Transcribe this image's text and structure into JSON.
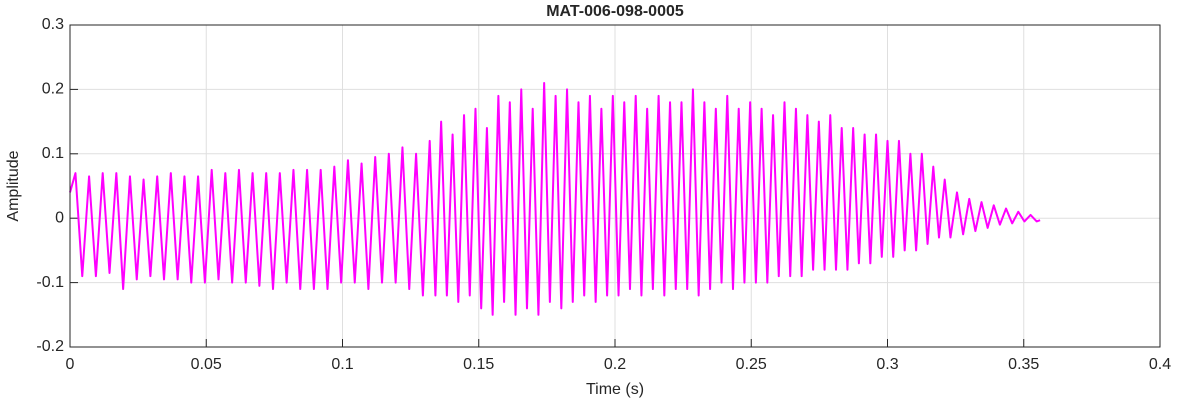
{
  "chart_data": {
    "type": "line",
    "title": "MAT-006-098-0005",
    "x_label": "Time (s)",
    "y_label": "Amplitude",
    "xlim": [
      0,
      0.4
    ],
    "ylim": [
      -0.2,
      0.3
    ],
    "xticks": [
      0,
      0.05,
      0.1,
      0.15,
      0.2,
      0.25,
      0.3,
      0.35,
      0.4
    ],
    "yticks": [
      -0.2,
      -0.1,
      0,
      0.1,
      0.2,
      0.3
    ],
    "grid": true,
    "x": [
      0,
      0.002,
      0.0045,
      0.007,
      0.0095,
      0.012,
      0.0145,
      0.017,
      0.0195,
      0.022,
      0.0245,
      0.027,
      0.0295,
      0.032,
      0.0345,
      0.037,
      0.0395,
      0.042,
      0.0445,
      0.047,
      0.0495,
      0.052,
      0.0545,
      0.057,
      0.0595,
      0.062,
      0.0645,
      0.067,
      0.0695,
      0.072,
      0.0745,
      0.077,
      0.0795,
      0.082,
      0.0845,
      0.087,
      0.0895,
      0.092,
      0.0945,
      0.097,
      0.0995,
      0.102,
      0.1045,
      0.107,
      0.1095,
      0.112,
      0.1145,
      0.117,
      0.1195,
      0.122,
      0.1245,
      0.127,
      0.1295,
      0.132,
      0.1341,
      0.1362,
      0.1383,
      0.1404,
      0.1425,
      0.1446,
      0.1467,
      0.1488,
      0.1509,
      0.153,
      0.1551,
      0.1572,
      0.1593,
      0.1614,
      0.1635,
      0.1656,
      0.1677,
      0.1698,
      0.1719,
      0.174,
      0.1761,
      0.1782,
      0.1803,
      0.1824,
      0.1845,
      0.1866,
      0.1887,
      0.1908,
      0.1929,
      0.195,
      0.1971,
      0.1992,
      0.2013,
      0.2034,
      0.2055,
      0.2076,
      0.2097,
      0.2118,
      0.2139,
      0.216,
      0.2181,
      0.2202,
      0.2223,
      0.2244,
      0.2265,
      0.2286,
      0.2307,
      0.2328,
      0.2349,
      0.237,
      0.2391,
      0.2412,
      0.2433,
      0.2454,
      0.2475,
      0.2496,
      0.2517,
      0.2538,
      0.2559,
      0.258,
      0.2601,
      0.2622,
      0.2643,
      0.2664,
      0.2685,
      0.2706,
      0.2727,
      0.2748,
      0.2769,
      0.279,
      0.2811,
      0.2832,
      0.2853,
      0.2874,
      0.2895,
      0.2916,
      0.2937,
      0.2958,
      0.2979,
      0.3,
      0.3021,
      0.3042,
      0.3063,
      0.3084,
      0.3105,
      0.3126,
      0.3147,
      0.3168,
      0.3189,
      0.321,
      0.3231,
      0.3255,
      0.32775,
      0.33,
      0.33225,
      0.3345,
      0.33675,
      0.339,
      0.34125,
      0.3435,
      0.34575,
      0.348,
      0.35025,
      0.3525,
      0.35475,
      0.356
    ],
    "series": [
      {
        "name": "Amplitude",
        "color": "#ff00ff",
        "values": [
          0.04,
          0.07,
          -0.09,
          0.065,
          -0.09,
          0.07,
          -0.085,
          0.07,
          -0.11,
          0.065,
          -0.095,
          0.06,
          -0.09,
          0.065,
          -0.095,
          0.07,
          -0.095,
          0.065,
          -0.1,
          0.065,
          -0.1,
          0.075,
          -0.095,
          0.07,
          -0.1,
          0.075,
          -0.1,
          0.07,
          -0.105,
          0.07,
          -0.11,
          0.07,
          -0.1,
          0.075,
          -0.11,
          0.075,
          -0.11,
          0.075,
          -0.11,
          0.08,
          -0.1,
          0.09,
          -0.1,
          0.085,
          -0.11,
          0.095,
          -0.1,
          0.1,
          -0.1,
          0.11,
          -0.11,
          0.1,
          -0.12,
          0.12,
          -0.12,
          0.15,
          -0.12,
          0.13,
          -0.13,
          0.16,
          -0.12,
          0.17,
          -0.14,
          0.14,
          -0.15,
          0.19,
          -0.13,
          0.18,
          -0.15,
          0.2,
          -0.14,
          0.17,
          -0.15,
          0.21,
          -0.13,
          0.19,
          -0.14,
          0.2,
          -0.13,
          0.18,
          -0.12,
          0.19,
          -0.13,
          0.17,
          -0.12,
          0.19,
          -0.12,
          0.18,
          -0.11,
          0.19,
          -0.12,
          0.17,
          -0.11,
          0.19,
          -0.12,
          0.18,
          -0.11,
          0.18,
          -0.11,
          0.2,
          -0.12,
          0.18,
          -0.11,
          0.17,
          -0.1,
          0.19,
          -0.11,
          0.17,
          -0.1,
          0.18,
          -0.1,
          0.17,
          -0.1,
          0.16,
          -0.09,
          0.18,
          -0.09,
          0.17,
          -0.09,
          0.16,
          -0.08,
          0.15,
          -0.08,
          0.16,
          -0.08,
          0.14,
          -0.08,
          0.14,
          -0.07,
          0.13,
          -0.07,
          0.13,
          -0.06,
          0.12,
          -0.06,
          0.12,
          -0.05,
          0.1,
          -0.05,
          0.1,
          -0.04,
          0.08,
          -0.03,
          0.06,
          -0.03,
          0.04,
          -0.025,
          0.03,
          -0.02,
          0.025,
          -0.015,
          0.02,
          -0.01,
          0.015,
          -0.008,
          0.01,
          -0.005,
          0.005,
          -0.005,
          -0.003
        ]
      }
    ]
  }
}
